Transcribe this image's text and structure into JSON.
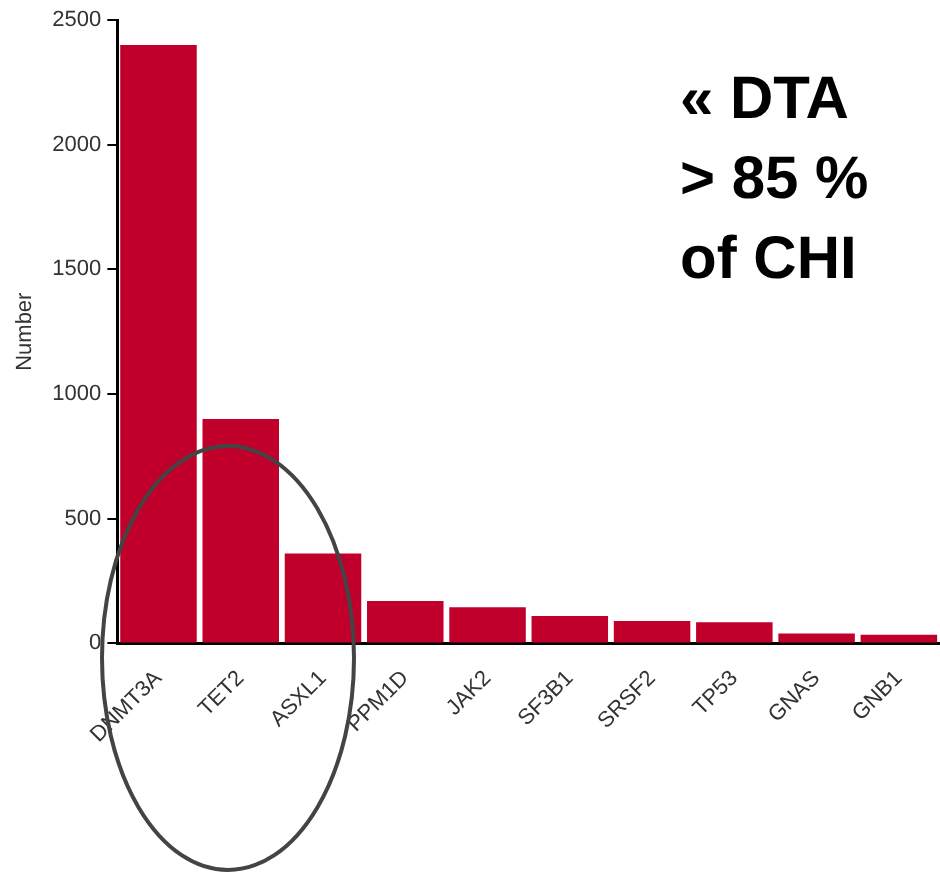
{
  "chart_data": {
    "type": "bar",
    "ylabel": "Number",
    "categories": [
      "DNMT3A",
      "TET2",
      "ASXL1",
      "PPM1D",
      "JAK2",
      "SF3B1",
      "SRSF2",
      "TP53",
      "GNAS",
      "GNB1"
    ],
    "values": [
      2400,
      900,
      360,
      170,
      145,
      110,
      90,
      85,
      40,
      35
    ],
    "color": "#c0002a",
    "ylim": [
      0,
      2500
    ],
    "yticks": [
      0,
      500,
      1000,
      1500,
      2000,
      2500
    ],
    "annotations": [
      "« DTA",
      "> 85 %",
      "of CHI"
    ]
  }
}
